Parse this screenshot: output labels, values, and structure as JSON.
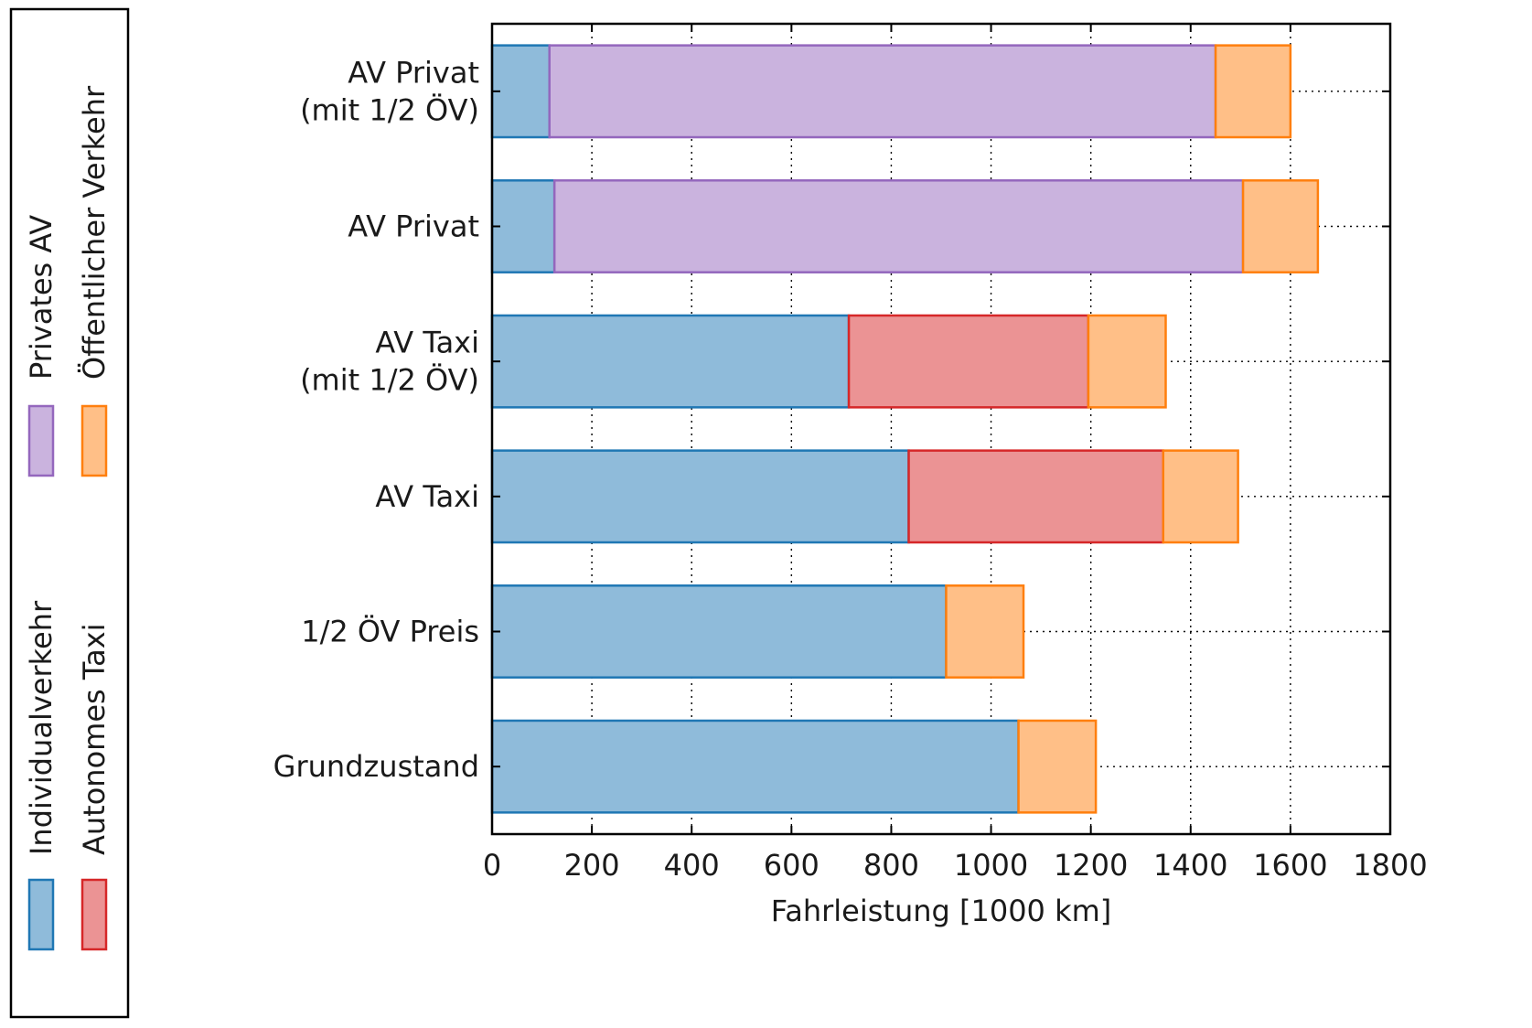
{
  "chart_data": {
    "type": "bar",
    "orientation": "horizontal",
    "stacked": true,
    "categories": [
      "AV Privat\n(mit 1/2 ÖV)",
      "AV Privat",
      "AV Taxi\n(mit 1/2 ÖV)",
      "AV Taxi",
      "1/2 ÖV Preis",
      "Grundzustand"
    ],
    "series": [
      {
        "name": "Individualverkehr",
        "color": "#1f77b4",
        "values": [
          115,
          125,
          715,
          835,
          910,
          1055
        ]
      },
      {
        "name": "Autonomes Taxi",
        "color": "#d62728",
        "values": [
          0,
          0,
          480,
          510,
          0,
          0
        ]
      },
      {
        "name": "Privates AV",
        "color": "#9467bd",
        "values": [
          1335,
          1380,
          0,
          0,
          0,
          0
        ]
      },
      {
        "name": "Öffentlicher Verkehr",
        "color": "#ff7f0e",
        "values": [
          150,
          150,
          155,
          150,
          155,
          155
        ]
      }
    ],
    "xlabel": "Fahrleistung [1000 km]",
    "ylabel": "",
    "xlim": [
      0,
      1800
    ],
    "xticks": [
      "0",
      "200",
      "400",
      "600",
      "800",
      "1000",
      "1200",
      "1400",
      "1600",
      "1800"
    ],
    "grid": true,
    "legend_position": "left",
    "title": ""
  }
}
